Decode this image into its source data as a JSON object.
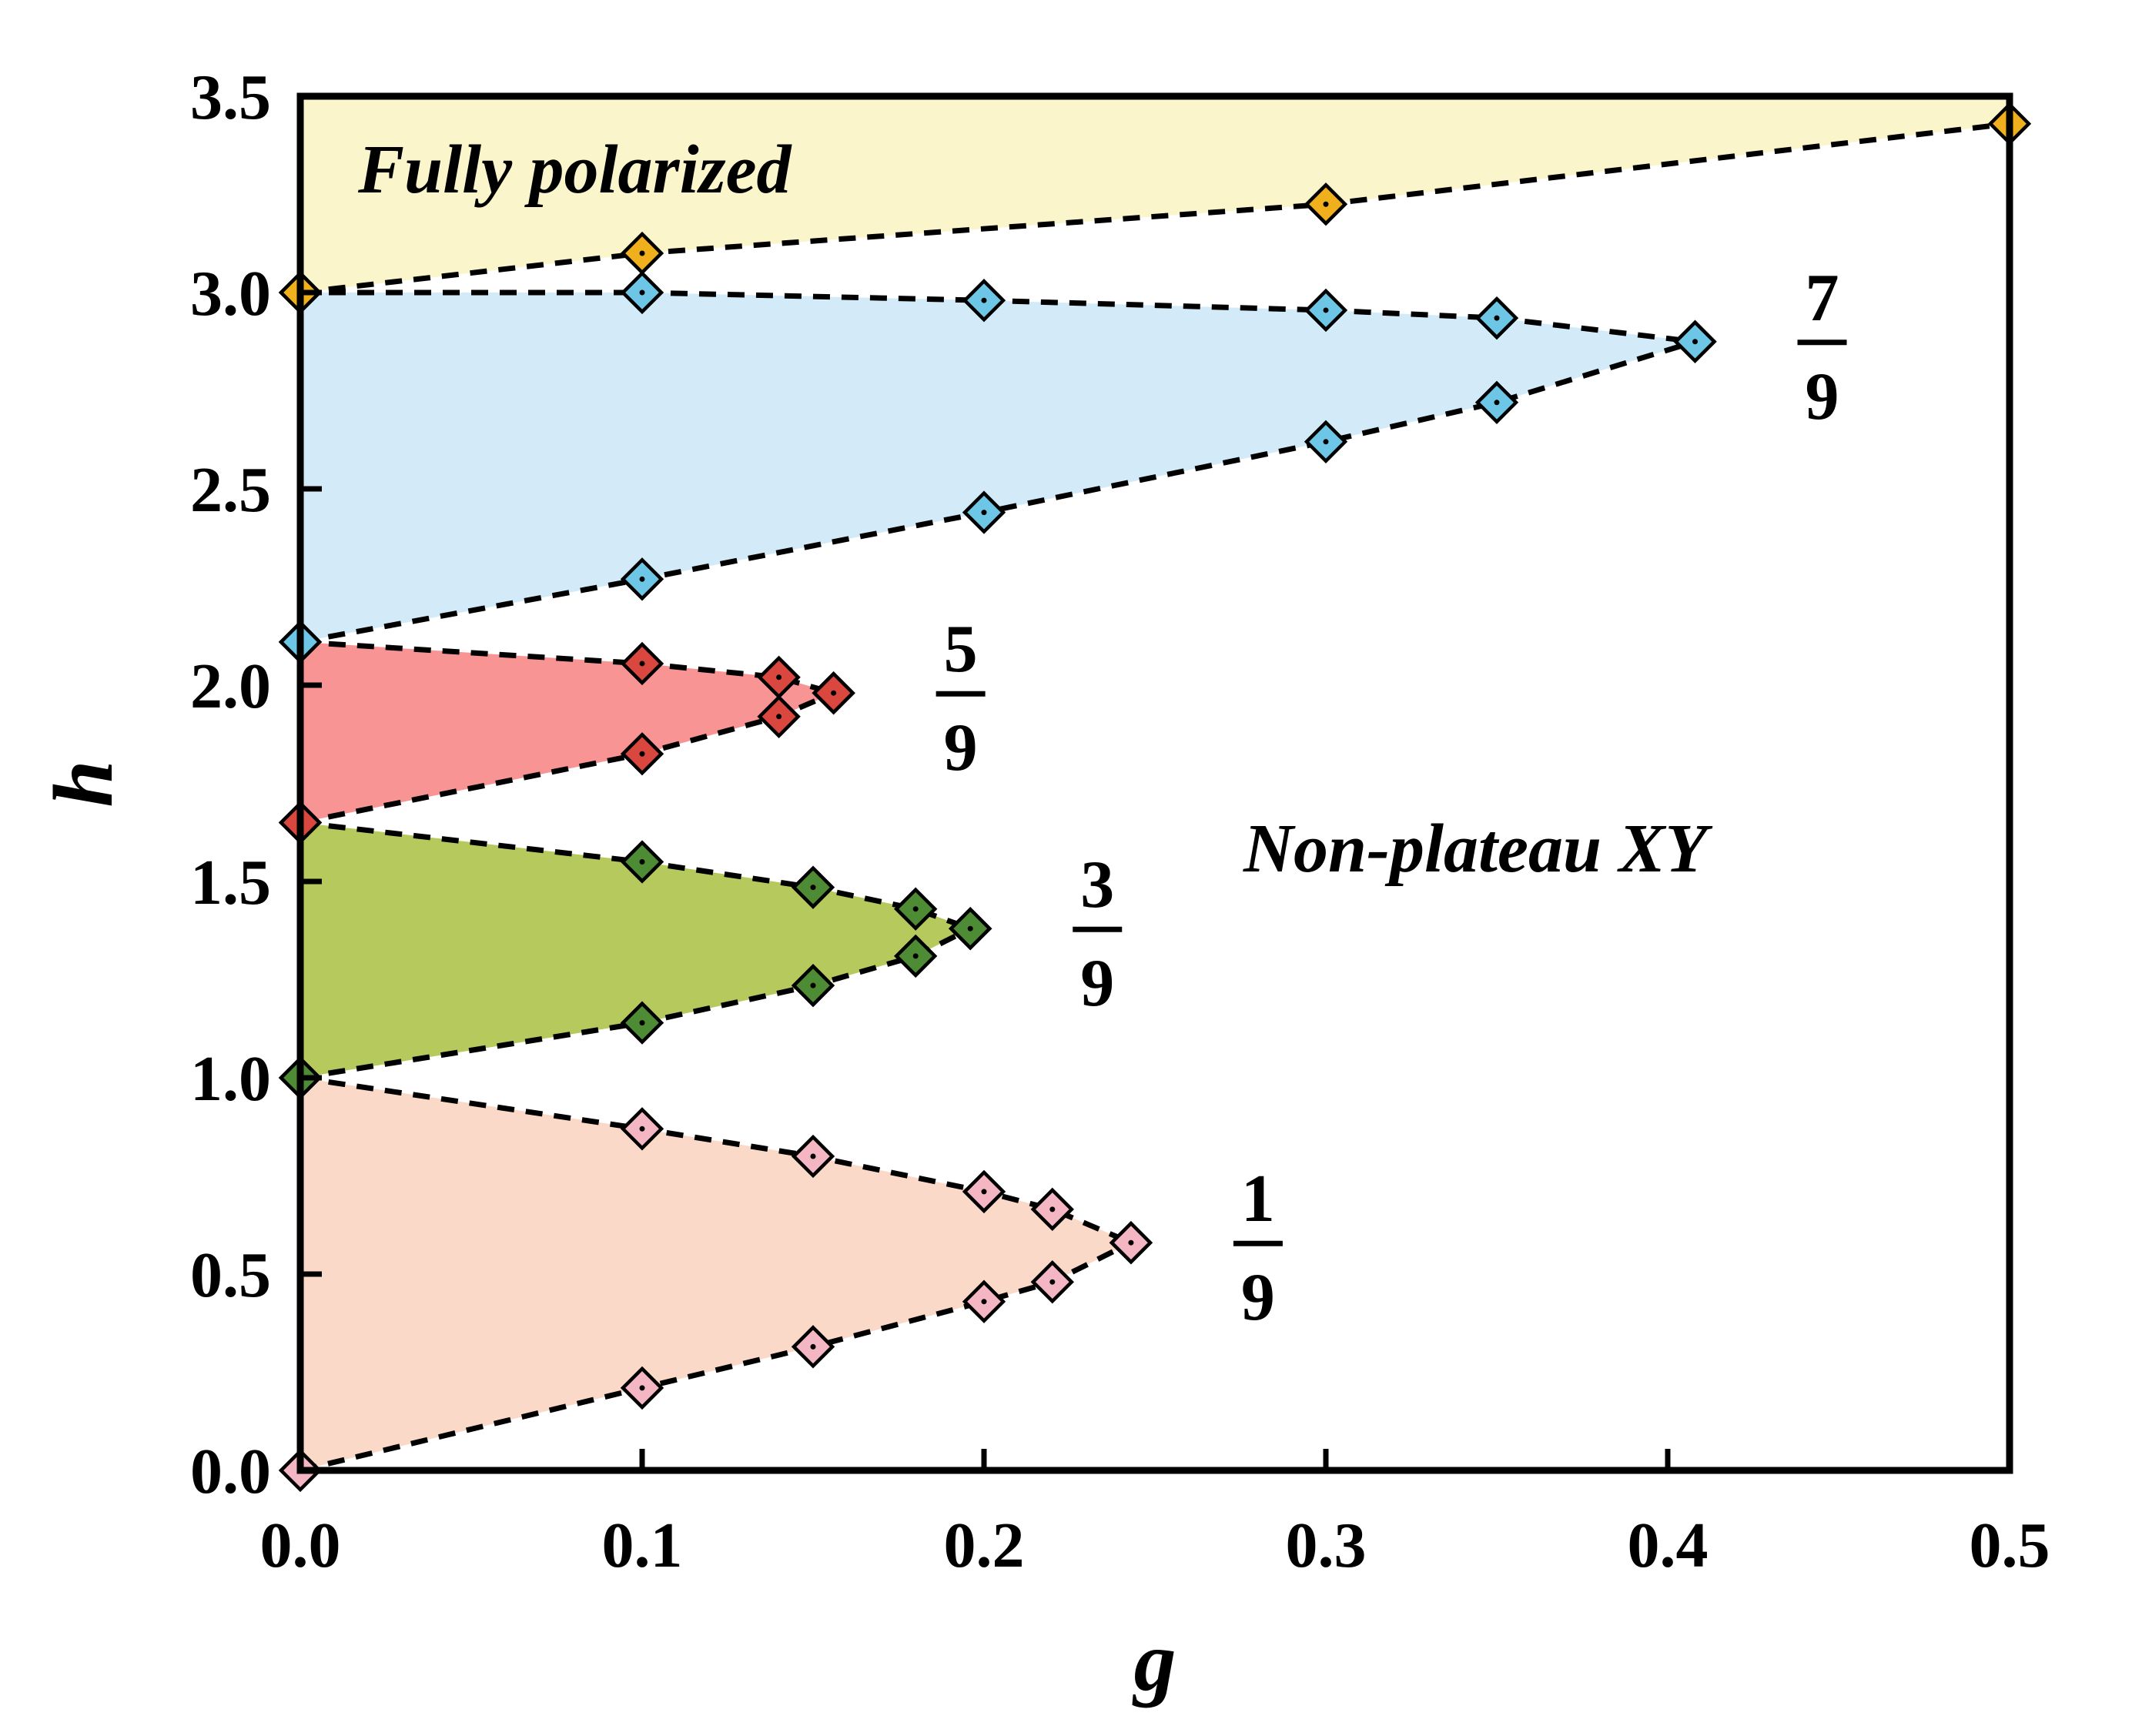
{
  "chart_data": {
    "type": "scatter",
    "title": "",
    "xlabel": "g",
    "ylabel": "h",
    "xlim": [
      0.0,
      0.5
    ],
    "ylim": [
      0.0,
      3.5
    ],
    "xticks": [
      "0.0",
      "0.1",
      "0.2",
      "0.3",
      "0.4",
      "0.5"
    ],
    "yticks": [
      "0.0",
      "0.5",
      "1.0",
      "1.5",
      "2.0",
      "2.5",
      "3.0",
      "3.5"
    ],
    "colors": {
      "frac_1_9_fill": "#fbd9c8",
      "frac_1_9_marker": "#f4b6c2",
      "frac_3_9_fill": "#b5c95d",
      "frac_3_9_marker": "#4e8b35",
      "frac_5_9_fill": "#f89494",
      "frac_5_9_marker": "#d9473f",
      "frac_7_9_fill": "#d3ebf9",
      "frac_7_9_marker": "#6ec6e6",
      "polarized_fill": "#fbf5cc",
      "polarized_marker": "#f0b01e"
    },
    "region_labels": {
      "fully_polarized": "Fully polarized",
      "non_plateau": "Non-plateau XY"
    },
    "plateaus": [
      {
        "id": "p1",
        "numerator": "1",
        "denominator": "9",
        "fill": "#fbd9c8",
        "marker": "#f4b6c2",
        "upper": [
          [
            0.0,
            1.0
          ],
          [
            0.1,
            0.87
          ],
          [
            0.15,
            0.8
          ],
          [
            0.2,
            0.71
          ],
          [
            0.22,
            0.665
          ],
          [
            0.243,
            0.58
          ]
        ],
        "lower": [
          [
            0.0,
            0.0
          ],
          [
            0.1,
            0.21
          ],
          [
            0.15,
            0.315
          ],
          [
            0.2,
            0.43
          ],
          [
            0.22,
            0.48
          ],
          [
            0.243,
            0.58
          ]
        ]
      },
      {
        "id": "p3",
        "numerator": "3",
        "denominator": "9",
        "fill": "#b5c95d",
        "marker": "#4e8b35",
        "upper": [
          [
            0.0,
            1.65
          ],
          [
            0.1,
            1.55
          ],
          [
            0.15,
            1.485
          ],
          [
            0.18,
            1.43
          ],
          [
            0.196,
            1.38
          ]
        ],
        "lower": [
          [
            0.0,
            1.0
          ],
          [
            0.1,
            1.14
          ],
          [
            0.15,
            1.235
          ],
          [
            0.18,
            1.31
          ],
          [
            0.196,
            1.38
          ]
        ]
      },
      {
        "id": "p5",
        "numerator": "5",
        "denominator": "9",
        "fill": "#f89494",
        "marker": "#d9473f",
        "upper": [
          [
            0.0,
            2.11
          ],
          [
            0.1,
            2.055
          ],
          [
            0.14,
            2.02
          ],
          [
            0.156,
            1.98
          ]
        ],
        "lower": [
          [
            0.0,
            1.65
          ],
          [
            0.1,
            1.825
          ],
          [
            0.14,
            1.92
          ],
          [
            0.156,
            1.98
          ]
        ]
      },
      {
        "id": "p7",
        "numerator": "7",
        "denominator": "9",
        "fill": "#d3ebf9",
        "marker": "#6ec6e6",
        "upper": [
          [
            0.0,
            3.0
          ],
          [
            0.1,
            3.0
          ],
          [
            0.2,
            2.98
          ],
          [
            0.3,
            2.955
          ],
          [
            0.35,
            2.935
          ],
          [
            0.408,
            2.875
          ]
        ],
        "lower": [
          [
            0.0,
            2.11
          ],
          [
            0.1,
            2.27
          ],
          [
            0.2,
            2.44
          ],
          [
            0.3,
            2.62
          ],
          [
            0.35,
            2.72
          ],
          [
            0.408,
            2.875
          ]
        ]
      }
    ],
    "saturation": {
      "fill": "#fbf5cc",
      "marker": "#f0b01e",
      "points": [
        [
          0.0,
          3.0
        ],
        [
          0.1,
          3.1
        ],
        [
          0.3,
          3.225
        ],
        [
          0.5,
          3.43
        ]
      ]
    }
  }
}
